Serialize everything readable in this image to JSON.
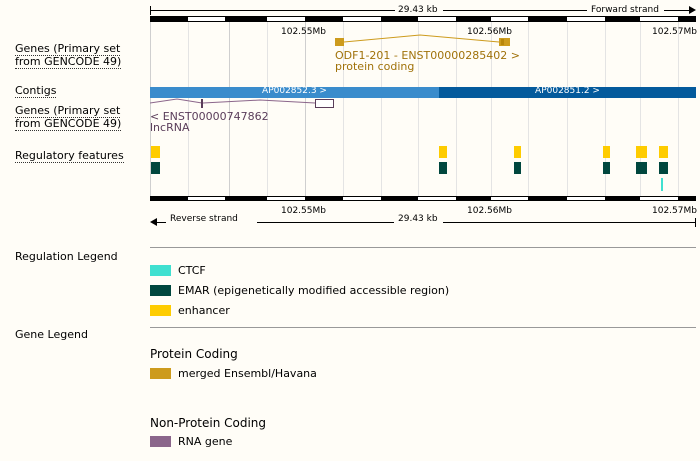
{
  "scale": {
    "top_length": "29.43 kb",
    "forward_strand": "Forward strand",
    "bottom_length": "29.43 kb",
    "reverse_strand": "Reverse strand",
    "ticks": [
      "102.55Mb",
      "102.56Mb",
      "102.57Mb"
    ]
  },
  "tracks": {
    "genes_forward_label": [
      "Genes (Primary set",
      "from GENCODE 49)"
    ],
    "contigs_label": "Contigs",
    "genes_reverse_label": [
      "Genes (Primary set",
      "from GENCODE 49)"
    ],
    "regulatory_label": "Regulatory features"
  },
  "gene_forward": {
    "name": "ODF1-201 - ENST00000285402 >",
    "biotype": "protein coding"
  },
  "contigs": [
    {
      "label": "AP002852.3 >"
    },
    {
      "label": "AP002851.2 >"
    }
  ],
  "gene_reverse": {
    "name": "< ENST00000747862",
    "biotype": "lncRNA"
  },
  "legend": {
    "regulation_title": "Regulation Legend",
    "regulation_items": [
      {
        "label": "CTCF",
        "color": "#40e0d0"
      },
      {
        "label": "EMAR (epigenetically modified accessible region)",
        "color": "#00473e"
      },
      {
        "label": "enhancer",
        "color": "#fecc00"
      }
    ],
    "gene_title": "Gene Legend",
    "protein_coding_title": "Protein Coding",
    "protein_coding_item": {
      "label": "merged Ensembl/Havana",
      "color": "#cd9b1d"
    },
    "non_protein_title": "Non-Protein Coding",
    "non_protein_item": {
      "label": "RNA gene",
      "color": "#8b668b"
    }
  },
  "colors": {
    "contig_light": "#3a8ccc",
    "contig_dark": "#045a9c",
    "gene_gold": "#cd9b1d",
    "gene_text": "#a0720a",
    "lnc_purple": "#8b668b",
    "lnc_text": "#5a3d5a"
  }
}
